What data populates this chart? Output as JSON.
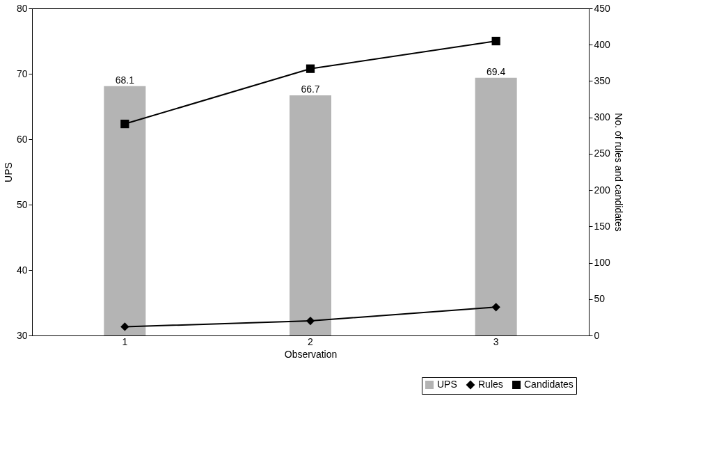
{
  "chart_data": {
    "type": "bar",
    "xlabel": "Observation",
    "ylabel": "UPS",
    "y2label": "No. of rules and candidates",
    "categories": [
      "1",
      "2",
      "3"
    ],
    "series": [
      {
        "name": "UPS",
        "color": "#b4b4b4",
        "values": [
          68.1,
          66.7,
          69.4
        ],
        "value_labels": [
          "68.1",
          "66.7",
          "69.4"
        ]
      },
      {
        "name": "Rules",
        "type": "line",
        "axis": "y2",
        "marker": "diamond",
        "color": "#000000",
        "values": [
          12,
          20,
          39
        ]
      },
      {
        "name": "Candidates",
        "type": "line",
        "axis": "y2",
        "marker": "square",
        "color": "#000000",
        "values": [
          291,
          367,
          405
        ]
      }
    ],
    "ylim": [
      30,
      80
    ],
    "yticks": [
      30,
      40,
      50,
      60,
      70,
      80
    ],
    "y2lim": [
      0,
      450
    ],
    "y2ticks": [
      0,
      50,
      100,
      150,
      200,
      250,
      300,
      350,
      400,
      450
    ],
    "grid": false,
    "legend": "bottom right",
    "line_style": "solid"
  }
}
